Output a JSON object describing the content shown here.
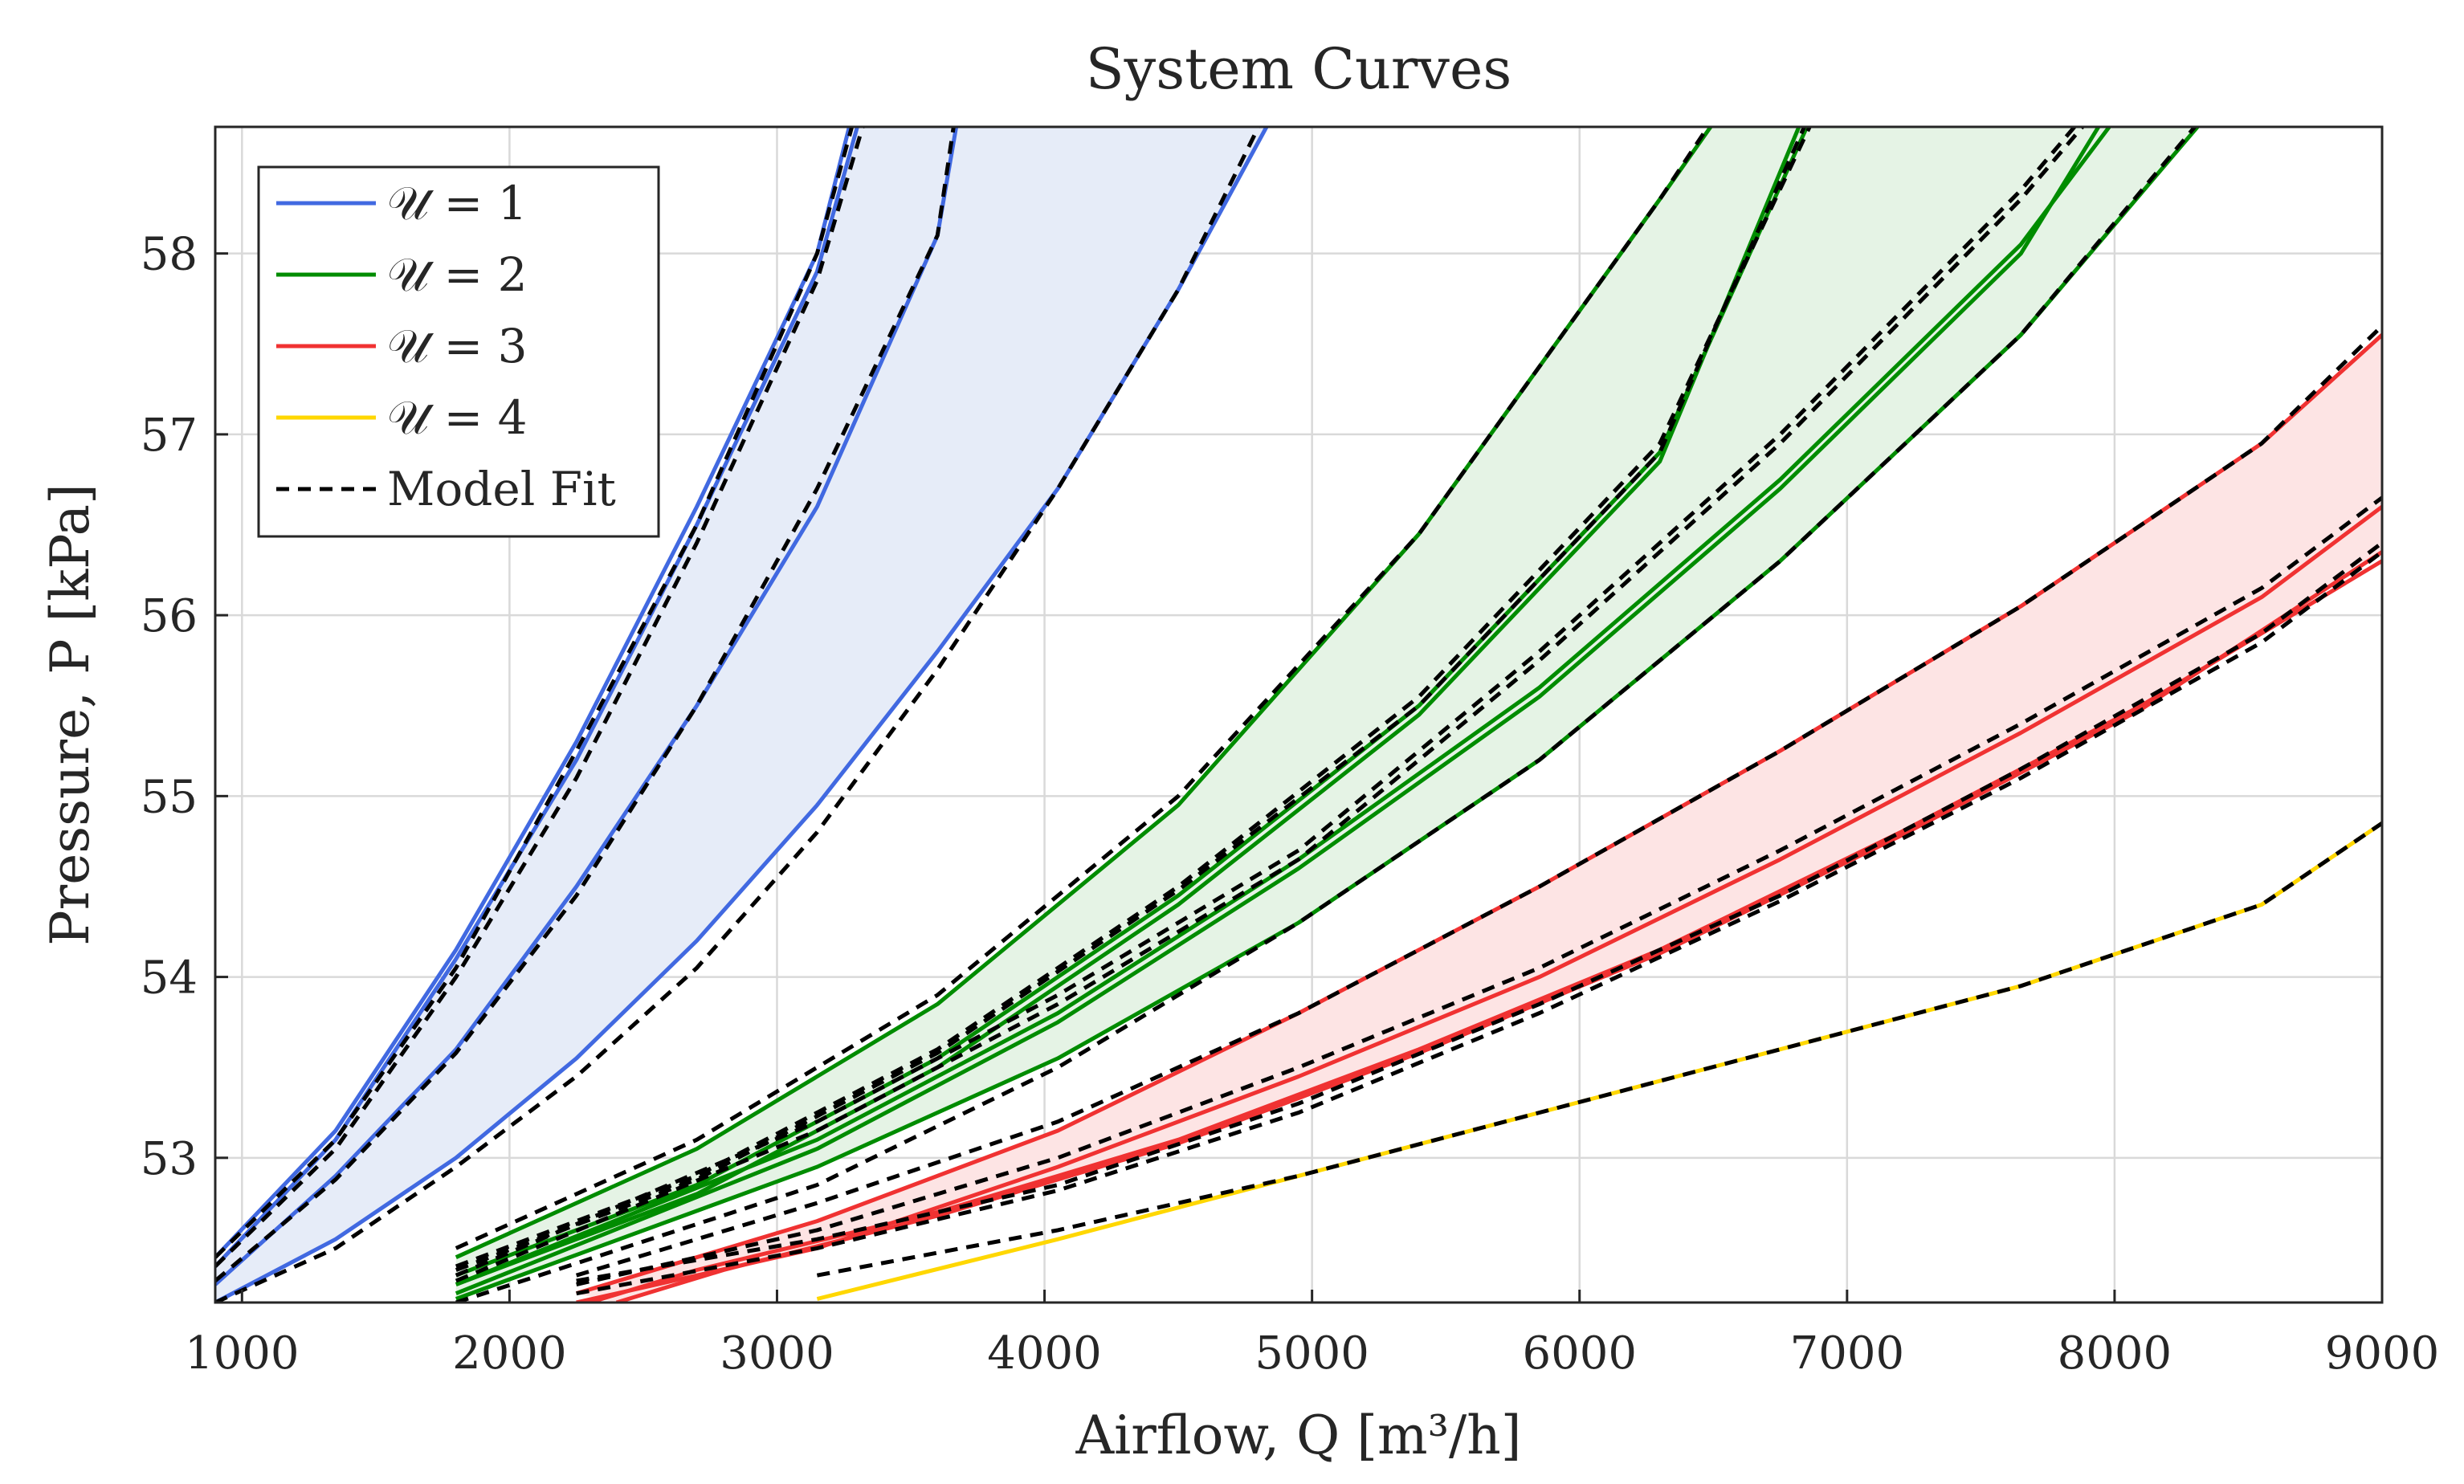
{
  "chart_data": {
    "type": "line",
    "title": "System Curves",
    "xlabel": "Airflow, Q [m³/h]",
    "ylabel": "Pressure, P [kPa]",
    "xlim": [
      900,
      9000
    ],
    "ylim": [
      52.2,
      58.7
    ],
    "xticks": [
      1000,
      2000,
      3000,
      4000,
      5000,
      6000,
      7000,
      8000,
      9000
    ],
    "yticks": [
      53,
      54,
      55,
      56,
      57,
      58
    ],
    "xtick_labels": [
      "1000",
      "2000",
      "3000",
      "4000",
      "5000",
      "6000",
      "7000",
      "8000",
      "9000"
    ],
    "ytick_labels": [
      "53",
      "54",
      "55",
      "56",
      "57",
      "58"
    ],
    "grid": true,
    "legend_position": "top-left",
    "legend": [
      {
        "label": "𝒰 = 1",
        "color": "#4169e1",
        "style": "solid"
      },
      {
        "label": "𝒰 = 2",
        "color": "#008c00",
        "style": "solid"
      },
      {
        "label": "𝒰 = 3",
        "color": "#f03232",
        "style": "solid"
      },
      {
        "label": "𝒰 = 4",
        "color": "#ffd700",
        "style": "solid"
      },
      {
        "label": "Model Fit",
        "color": "#000000",
        "style": "dashed"
      }
    ],
    "groups": [
      {
        "group": 1,
        "color": "#4169e1",
        "band_color": "#e6ecf8",
        "series": [
          {
            "x": [
              900,
              1350,
              1800,
              2250,
              2700,
              3150,
              3300
            ],
            "y": [
              52.4,
              53.1,
              54.1,
              55.2,
              56.5,
              57.9,
              58.7
            ]
          },
          {
            "x": [
              900,
              1350,
              1800,
              2250,
              2700,
              3150,
              3270
            ],
            "y": [
              52.45,
              53.15,
              54.15,
              55.3,
              56.6,
              58.0,
              58.7
            ]
          },
          {
            "x": [
              900,
              1350,
              1800,
              2250,
              2700,
              3150,
              3600,
              3670
            ],
            "y": [
              52.3,
              52.9,
              53.6,
              54.5,
              55.5,
              56.6,
              58.1,
              58.7
            ]
          },
          {
            "x": [
              900,
              1350,
              1800,
              2250,
              2700,
              3150,
              3600,
              4050,
              4500,
              4830
            ],
            "y": [
              52.2,
              52.55,
              53.0,
              53.55,
              54.2,
              54.95,
              55.8,
              56.7,
              57.8,
              58.7
            ]
          }
        ],
        "fits": [
          {
            "x": [
              900,
              1350,
              1800,
              2250,
              2700,
              3150,
              3280
            ],
            "y": [
              52.45,
              53.1,
              54.05,
              55.25,
              56.5,
              58.0,
              58.7
            ]
          },
          {
            "x": [
              900,
              1350,
              1800,
              2250,
              2700,
              3150,
              3320
            ],
            "y": [
              52.4,
              53.05,
              54.0,
              55.1,
              56.4,
              57.85,
              58.7
            ]
          },
          {
            "x": [
              900,
              1350,
              1800,
              2250,
              2700,
              3150,
              3600,
              3660
            ],
            "y": [
              52.32,
              52.88,
              53.58,
              54.45,
              55.5,
              56.7,
              58.1,
              58.7
            ]
          },
          {
            "x": [
              900,
              1350,
              1800,
              2250,
              2700,
              3150,
              3600,
              4050,
              4500,
              4800
            ],
            "y": [
              52.2,
              52.5,
              52.95,
              53.45,
              54.05,
              54.8,
              55.7,
              56.7,
              57.8,
              58.7
            ]
          }
        ]
      },
      {
        "group": 2,
        "color": "#008c00",
        "band_color": "#e5f3e5",
        "series": [
          {
            "x": [
              1800,
              2700,
              3600,
              4500,
              5400,
              6300,
              6490
            ],
            "y": [
              52.45,
              53.05,
              53.85,
              54.95,
              56.45,
              58.3,
              58.7
            ]
          },
          {
            "x": [
              1800,
              2700,
              3600,
              4500,
              5400,
              6300,
              6850
            ],
            "y": [
              52.35,
              52.85,
              53.55,
              54.45,
              55.5,
              56.9,
              58.7
            ]
          },
          {
            "x": [
              1800,
              2700,
              3600,
              4500,
              5400,
              6300,
              6820
            ],
            "y": [
              52.3,
              52.8,
              53.5,
              54.4,
              55.45,
              56.85,
              58.7
            ]
          },
          {
            "x": [
              1800,
              3150,
              4050,
              4950,
              5850,
              6750,
              7650,
              7980
            ],
            "y": [
              52.3,
              53.1,
              53.8,
              54.65,
              55.6,
              56.75,
              58.05,
              58.7
            ]
          },
          {
            "x": [
              1800,
              3150,
              4050,
              4950,
              5850,
              6750,
              7650,
              7940
            ],
            "y": [
              52.25,
              53.05,
              53.75,
              54.6,
              55.55,
              56.7,
              58.0,
              58.7
            ]
          },
          {
            "x": [
              1800,
              3150,
              4050,
              4950,
              5850,
              6750,
              7650,
              8310
            ],
            "y": [
              52.22,
              52.95,
              53.55,
              54.3,
              55.2,
              56.3,
              57.55,
              58.7
            ]
          }
        ],
        "fits": [
          {
            "x": [
              1800,
              2700,
              3600,
              4500,
              5400,
              6300,
              6480
            ],
            "y": [
              52.5,
              53.1,
              53.9,
              55.0,
              56.45,
              58.3,
              58.7
            ]
          },
          {
            "x": [
              1800,
              2700,
              3600,
              4500,
              5400,
              6300,
              6860
            ],
            "y": [
              52.4,
              52.9,
              53.6,
              54.5,
              55.55,
              56.95,
              58.7
            ]
          },
          {
            "x": [
              1800,
              2700,
              3600,
              4500,
              5400,
              6300,
              6840
            ],
            "y": [
              52.38,
              52.88,
              53.58,
              54.48,
              55.5,
              56.9,
              58.7
            ]
          },
          {
            "x": [
              1800,
              3150,
              4050,
              4950,
              5850,
              6750,
              7650,
              7850
            ],
            "y": [
              52.35,
              53.2,
              53.9,
              54.7,
              55.8,
              57.0,
              58.35,
              58.7
            ]
          },
          {
            "x": [
              1800,
              3150,
              4050,
              4950,
              5850,
              6750,
              7650,
              7880
            ],
            "y": [
              52.32,
              53.15,
              53.85,
              54.65,
              55.75,
              56.95,
              58.3,
              58.7
            ]
          },
          {
            "x": [
              1800,
              3150,
              4050,
              4950,
              5850,
              6750,
              7650,
              8300
            ],
            "y": [
              52.2,
              52.85,
              53.5,
              54.3,
              55.2,
              56.3,
              57.55,
              58.7
            ]
          }
        ]
      },
      {
        "group": 3,
        "color": "#f03232",
        "band_color": "#fde4e4",
        "series": [
          {
            "x": [
              2250,
              3150,
              4050,
              4950,
              5850,
              6750,
              7650,
              8550,
              9000
            ],
            "y": [
              52.25,
              52.65,
              53.15,
              53.8,
              54.5,
              55.25,
              56.05,
              56.95,
              57.55
            ]
          },
          {
            "x": [
              2250,
              3150,
              4050,
              4950,
              5850,
              6750,
              7650,
              8550,
              9000
            ],
            "y": [
              52.2,
              52.5,
              52.95,
              53.45,
              54.0,
              54.65,
              55.35,
              56.1,
              56.6
            ]
          },
          {
            "x": [
              2300,
              2700,
              3600,
              4500,
              5400,
              6300,
              7200,
              8100,
              9000
            ],
            "y": [
              52.2,
              52.38,
              52.7,
              53.1,
              53.6,
              54.15,
              54.8,
              55.5,
              56.3
            ]
          },
          {
            "x": [
              2400,
              2800,
              3600,
              4500,
              5400,
              6300,
              7200,
              8100,
              9000
            ],
            "y": [
              52.2,
              52.38,
              52.68,
              53.08,
              53.58,
              54.13,
              54.78,
              55.48,
              56.35
            ]
          }
        ],
        "fits": [
          {
            "x": [
              2250,
              3150,
              4050,
              4950,
              5850,
              6750,
              7650,
              8550,
              9000
            ],
            "y": [
              52.35,
              52.75,
              53.2,
              53.8,
              54.5,
              55.25,
              56.05,
              56.95,
              57.6
            ]
          },
          {
            "x": [
              2250,
              3150,
              4050,
              4950,
              5850,
              6750,
              7650,
              8550,
              9000
            ],
            "y": [
              52.3,
              52.6,
              53.0,
              53.5,
              54.05,
              54.7,
              55.4,
              56.15,
              56.65
            ]
          },
          {
            "x": [
              2250,
              3150,
              4050,
              4950,
              5850,
              6750,
              7650,
              8550,
              9000
            ],
            "y": [
              52.32,
              52.55,
              52.85,
              53.3,
              53.85,
              54.45,
              55.15,
              55.9,
              56.4
            ]
          },
          {
            "x": [
              2250,
              3150,
              4050,
              4950,
              5850,
              6750,
              7650,
              8550,
              9000
            ],
            "y": [
              52.25,
              52.5,
              52.82,
              53.25,
              53.8,
              54.42,
              55.1,
              55.85,
              56.35
            ]
          }
        ]
      },
      {
        "group": 4,
        "color": "#ffd700",
        "series": [
          {
            "x": [
              3150,
              4050,
              4950,
              5850,
              6750,
              7650,
              8550,
              9000
            ],
            "y": [
              52.22,
              52.55,
              52.9,
              53.25,
              53.6,
              53.95,
              54.4,
              54.85
            ]
          }
        ],
        "fits": [
          {
            "x": [
              3150,
              4050,
              4950,
              5850,
              6750,
              7650,
              8550,
              9000
            ],
            "y": [
              52.35,
              52.6,
              52.9,
              53.25,
              53.6,
              53.95,
              54.4,
              54.85
            ]
          }
        ]
      }
    ]
  }
}
